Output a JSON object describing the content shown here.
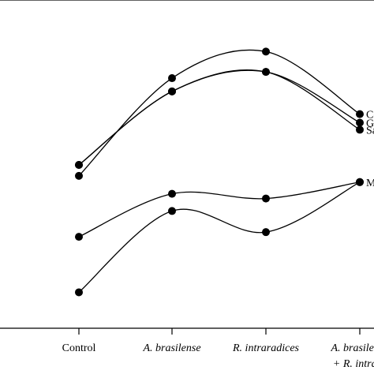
{
  "chart_data": {
    "type": "line",
    "categories": [
      "Control",
      "A. brasilense",
      "R. intraradices",
      "A. brasilense + R. intraradices"
    ],
    "category_labels": [
      {
        "lines": [
          "Control"
        ],
        "italic": [
          false
        ]
      },
      {
        "lines": [
          "A. brasilense"
        ],
        "italic": [
          true
        ]
      },
      {
        "lines": [
          "R. intraradices"
        ],
        "italic": [
          true
        ]
      },
      {
        "lines": [
          "A. brasilense",
          "+ R. intrara"
        ],
        "italic": [
          true,
          true
        ]
      }
    ],
    "series": [
      {
        "label": "Co",
        "values": [
          225,
          100,
          66,
          146
        ]
      },
      {
        "label": "G",
        "values": [
          211,
          117,
          92,
          157
        ]
      },
      {
        "label": "Sa",
        "values": [
          211,
          117,
          92,
          166
        ]
      },
      {
        "label": "M",
        "values": [
          303,
          248,
          254,
          233
        ]
      },
      {
        "label": "",
        "values": [
          374,
          270,
          297,
          233
        ]
      }
    ],
    "ylim": [
      0,
      420
    ],
    "y_inverted": true,
    "y_tick_labels": false,
    "marker": "filled-circle",
    "smooth": true,
    "grid": false,
    "line_color": "#000000"
  }
}
